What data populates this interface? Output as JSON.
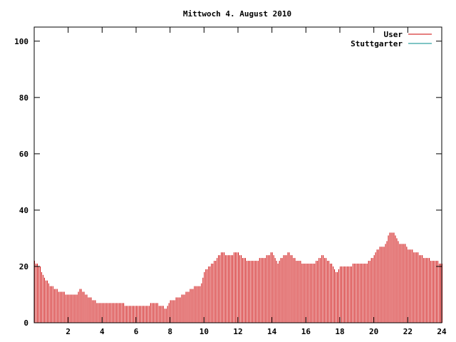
{
  "chart_data": {
    "type": "bar",
    "title": "Mittwoch 4. August 2010",
    "xlabel": "",
    "ylabel": "",
    "xlim": [
      0,
      24
    ],
    "ylim": [
      0,
      105
    ],
    "x_ticks": [
      "2",
      "4",
      "6",
      "8",
      "10",
      "12",
      "14",
      "16",
      "18",
      "20",
      "22",
      "24"
    ],
    "x_tick_values": [
      2,
      4,
      6,
      8,
      10,
      12,
      14,
      16,
      18,
      20,
      22,
      24
    ],
    "y_ticks": [
      "0",
      "20",
      "40",
      "60",
      "80",
      "100"
    ],
    "y_tick_values": [
      0,
      20,
      40,
      60,
      80,
      100
    ],
    "grid": false,
    "legend_position": "top-right",
    "series": [
      {
        "name": "User",
        "color": "#cc0000",
        "knots": [
          [
            0.0,
            22
          ],
          [
            0.3,
            20
          ],
          [
            0.5,
            17
          ],
          [
            0.8,
            14
          ],
          [
            1.0,
            13
          ],
          [
            1.2,
            12
          ],
          [
            1.5,
            11
          ],
          [
            2.0,
            10
          ],
          [
            2.5,
            10
          ],
          [
            2.7,
            12
          ],
          [
            3.0,
            10
          ],
          [
            3.5,
            8
          ],
          [
            3.8,
            7
          ],
          [
            4.5,
            7
          ],
          [
            5.0,
            7
          ],
          [
            5.5,
            6
          ],
          [
            6.5,
            6
          ],
          [
            7.0,
            7
          ],
          [
            7.5,
            6
          ],
          [
            7.7,
            5
          ],
          [
            8.0,
            8
          ],
          [
            8.5,
            9
          ],
          [
            9.0,
            11
          ],
          [
            9.5,
            13
          ],
          [
            9.8,
            13
          ],
          [
            10.0,
            18
          ],
          [
            10.5,
            21
          ],
          [
            11.0,
            25
          ],
          [
            11.5,
            24
          ],
          [
            12.0,
            25
          ],
          [
            12.3,
            23
          ],
          [
            12.7,
            22
          ],
          [
            13.0,
            22
          ],
          [
            13.5,
            23
          ],
          [
            14.0,
            25
          ],
          [
            14.3,
            21
          ],
          [
            14.7,
            24
          ],
          [
            15.0,
            25
          ],
          [
            15.5,
            22
          ],
          [
            16.0,
            21
          ],
          [
            16.5,
            21
          ],
          [
            17.0,
            24
          ],
          [
            17.5,
            21
          ],
          [
            17.8,
            18
          ],
          [
            18.0,
            20
          ],
          [
            18.5,
            20
          ],
          [
            19.0,
            21
          ],
          [
            19.5,
            21
          ],
          [
            20.0,
            24
          ],
          [
            20.3,
            27
          ],
          [
            20.6,
            27
          ],
          [
            20.9,
            32
          ],
          [
            21.2,
            32
          ],
          [
            21.5,
            28
          ],
          [
            21.8,
            28
          ],
          [
            22.0,
            26
          ],
          [
            22.5,
            25
          ],
          [
            23.0,
            23
          ],
          [
            23.5,
            22
          ],
          [
            24.0,
            21
          ]
        ]
      },
      {
        "name": "Stuttgarter",
        "color": "#008b8b",
        "knots": []
      }
    ]
  }
}
